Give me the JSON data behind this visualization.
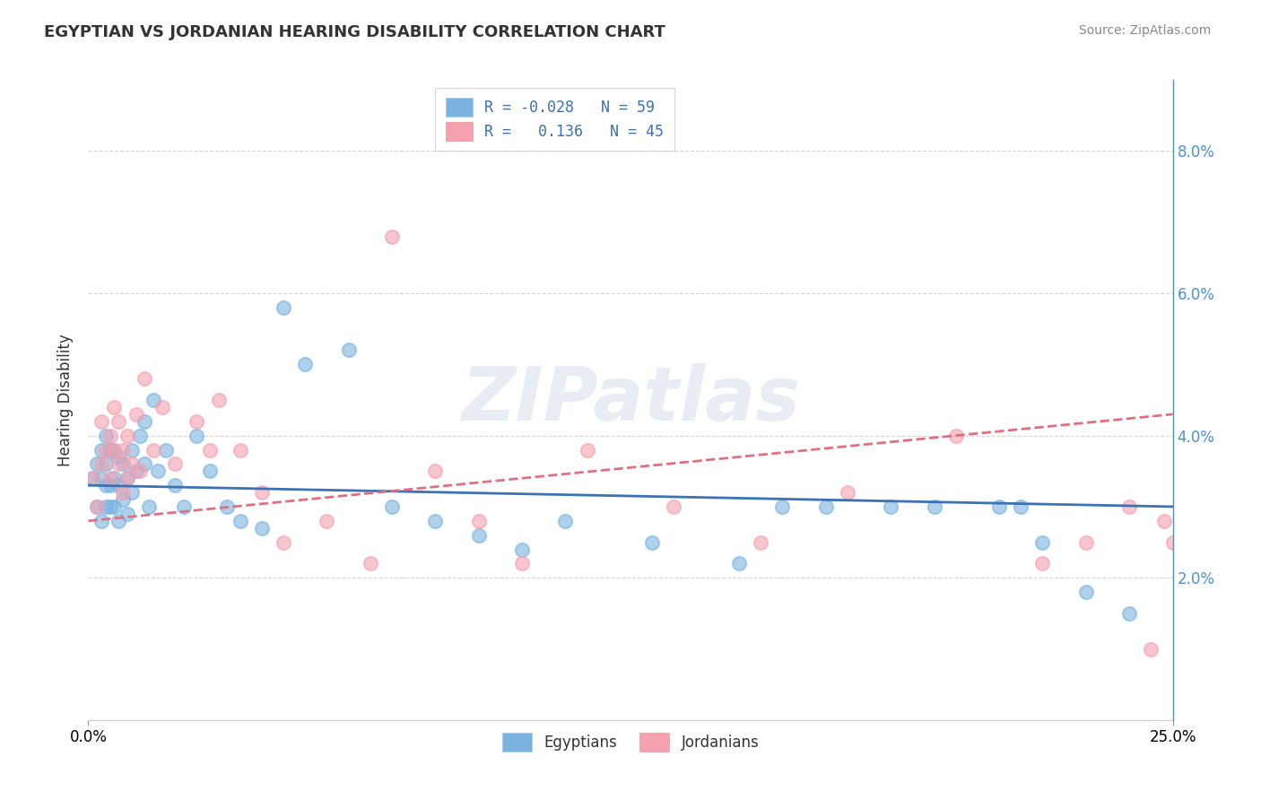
{
  "title": "EGYPTIAN VS JORDANIAN HEARING DISABILITY CORRELATION CHART",
  "source": "Source: ZipAtlas.com",
  "ylabel": "Hearing Disability",
  "xlim": [
    0.0,
    0.25
  ],
  "ylim": [
    0.0,
    0.09
  ],
  "yticks": [
    0.02,
    0.04,
    0.06,
    0.08
  ],
  "ytick_labels": [
    "2.0%",
    "4.0%",
    "6.0%",
    "8.0%"
  ],
  "xtick_labels": [
    "0.0%",
    "25.0%"
  ],
  "xtick_vals": [
    0.0,
    0.25
  ],
  "color_blue": "#7ab3e0",
  "color_pink": "#f4a0b0",
  "trend_blue_color": "#3a72b5",
  "trend_pink_color": "#e07080",
  "legend_text1": "R = -0.028   N = 59",
  "legend_text2": "R =   0.136   N = 45",
  "watermark": "ZIPatlas",
  "egyptians_x": [
    0.001,
    0.002,
    0.002,
    0.003,
    0.003,
    0.003,
    0.004,
    0.004,
    0.004,
    0.004,
    0.005,
    0.005,
    0.005,
    0.006,
    0.006,
    0.006,
    0.007,
    0.007,
    0.007,
    0.008,
    0.008,
    0.009,
    0.009,
    0.01,
    0.01,
    0.011,
    0.012,
    0.013,
    0.013,
    0.014,
    0.015,
    0.016,
    0.018,
    0.02,
    0.022,
    0.025,
    0.028,
    0.032,
    0.035,
    0.04,
    0.045,
    0.05,
    0.06,
    0.07,
    0.08,
    0.09,
    0.1,
    0.11,
    0.13,
    0.15,
    0.16,
    0.17,
    0.185,
    0.195,
    0.21,
    0.215,
    0.22,
    0.23,
    0.24
  ],
  "egyptians_y": [
    0.034,
    0.03,
    0.036,
    0.028,
    0.034,
    0.038,
    0.03,
    0.033,
    0.036,
    0.04,
    0.03,
    0.033,
    0.038,
    0.03,
    0.034,
    0.038,
    0.028,
    0.033,
    0.037,
    0.031,
    0.036,
    0.029,
    0.034,
    0.032,
    0.038,
    0.035,
    0.04,
    0.036,
    0.042,
    0.03,
    0.045,
    0.035,
    0.038,
    0.033,
    0.03,
    0.04,
    0.035,
    0.03,
    0.028,
    0.027,
    0.058,
    0.05,
    0.052,
    0.03,
    0.028,
    0.026,
    0.024,
    0.028,
    0.025,
    0.022,
    0.03,
    0.03,
    0.03,
    0.03,
    0.03,
    0.03,
    0.025,
    0.018,
    0.015
  ],
  "jordanians_x": [
    0.001,
    0.002,
    0.003,
    0.003,
    0.004,
    0.005,
    0.005,
    0.006,
    0.006,
    0.007,
    0.007,
    0.008,
    0.008,
    0.009,
    0.009,
    0.01,
    0.011,
    0.012,
    0.013,
    0.015,
    0.017,
    0.02,
    0.025,
    0.028,
    0.03,
    0.035,
    0.04,
    0.045,
    0.055,
    0.065,
    0.07,
    0.08,
    0.09,
    0.1,
    0.115,
    0.135,
    0.155,
    0.175,
    0.2,
    0.22,
    0.23,
    0.24,
    0.245,
    0.248,
    0.25
  ],
  "jordanians_y": [
    0.034,
    0.03,
    0.036,
    0.042,
    0.038,
    0.034,
    0.04,
    0.038,
    0.044,
    0.036,
    0.042,
    0.032,
    0.038,
    0.034,
    0.04,
    0.036,
    0.043,
    0.035,
    0.048,
    0.038,
    0.044,
    0.036,
    0.042,
    0.038,
    0.045,
    0.038,
    0.032,
    0.025,
    0.028,
    0.022,
    0.068,
    0.035,
    0.028,
    0.022,
    0.038,
    0.03,
    0.025,
    0.032,
    0.04,
    0.022,
    0.025,
    0.03,
    0.01,
    0.028,
    0.025
  ],
  "trend_blue": [
    0.0,
    0.25,
    0.033,
    0.03
  ],
  "trend_pink": [
    0.0,
    0.25,
    0.028,
    0.043
  ]
}
